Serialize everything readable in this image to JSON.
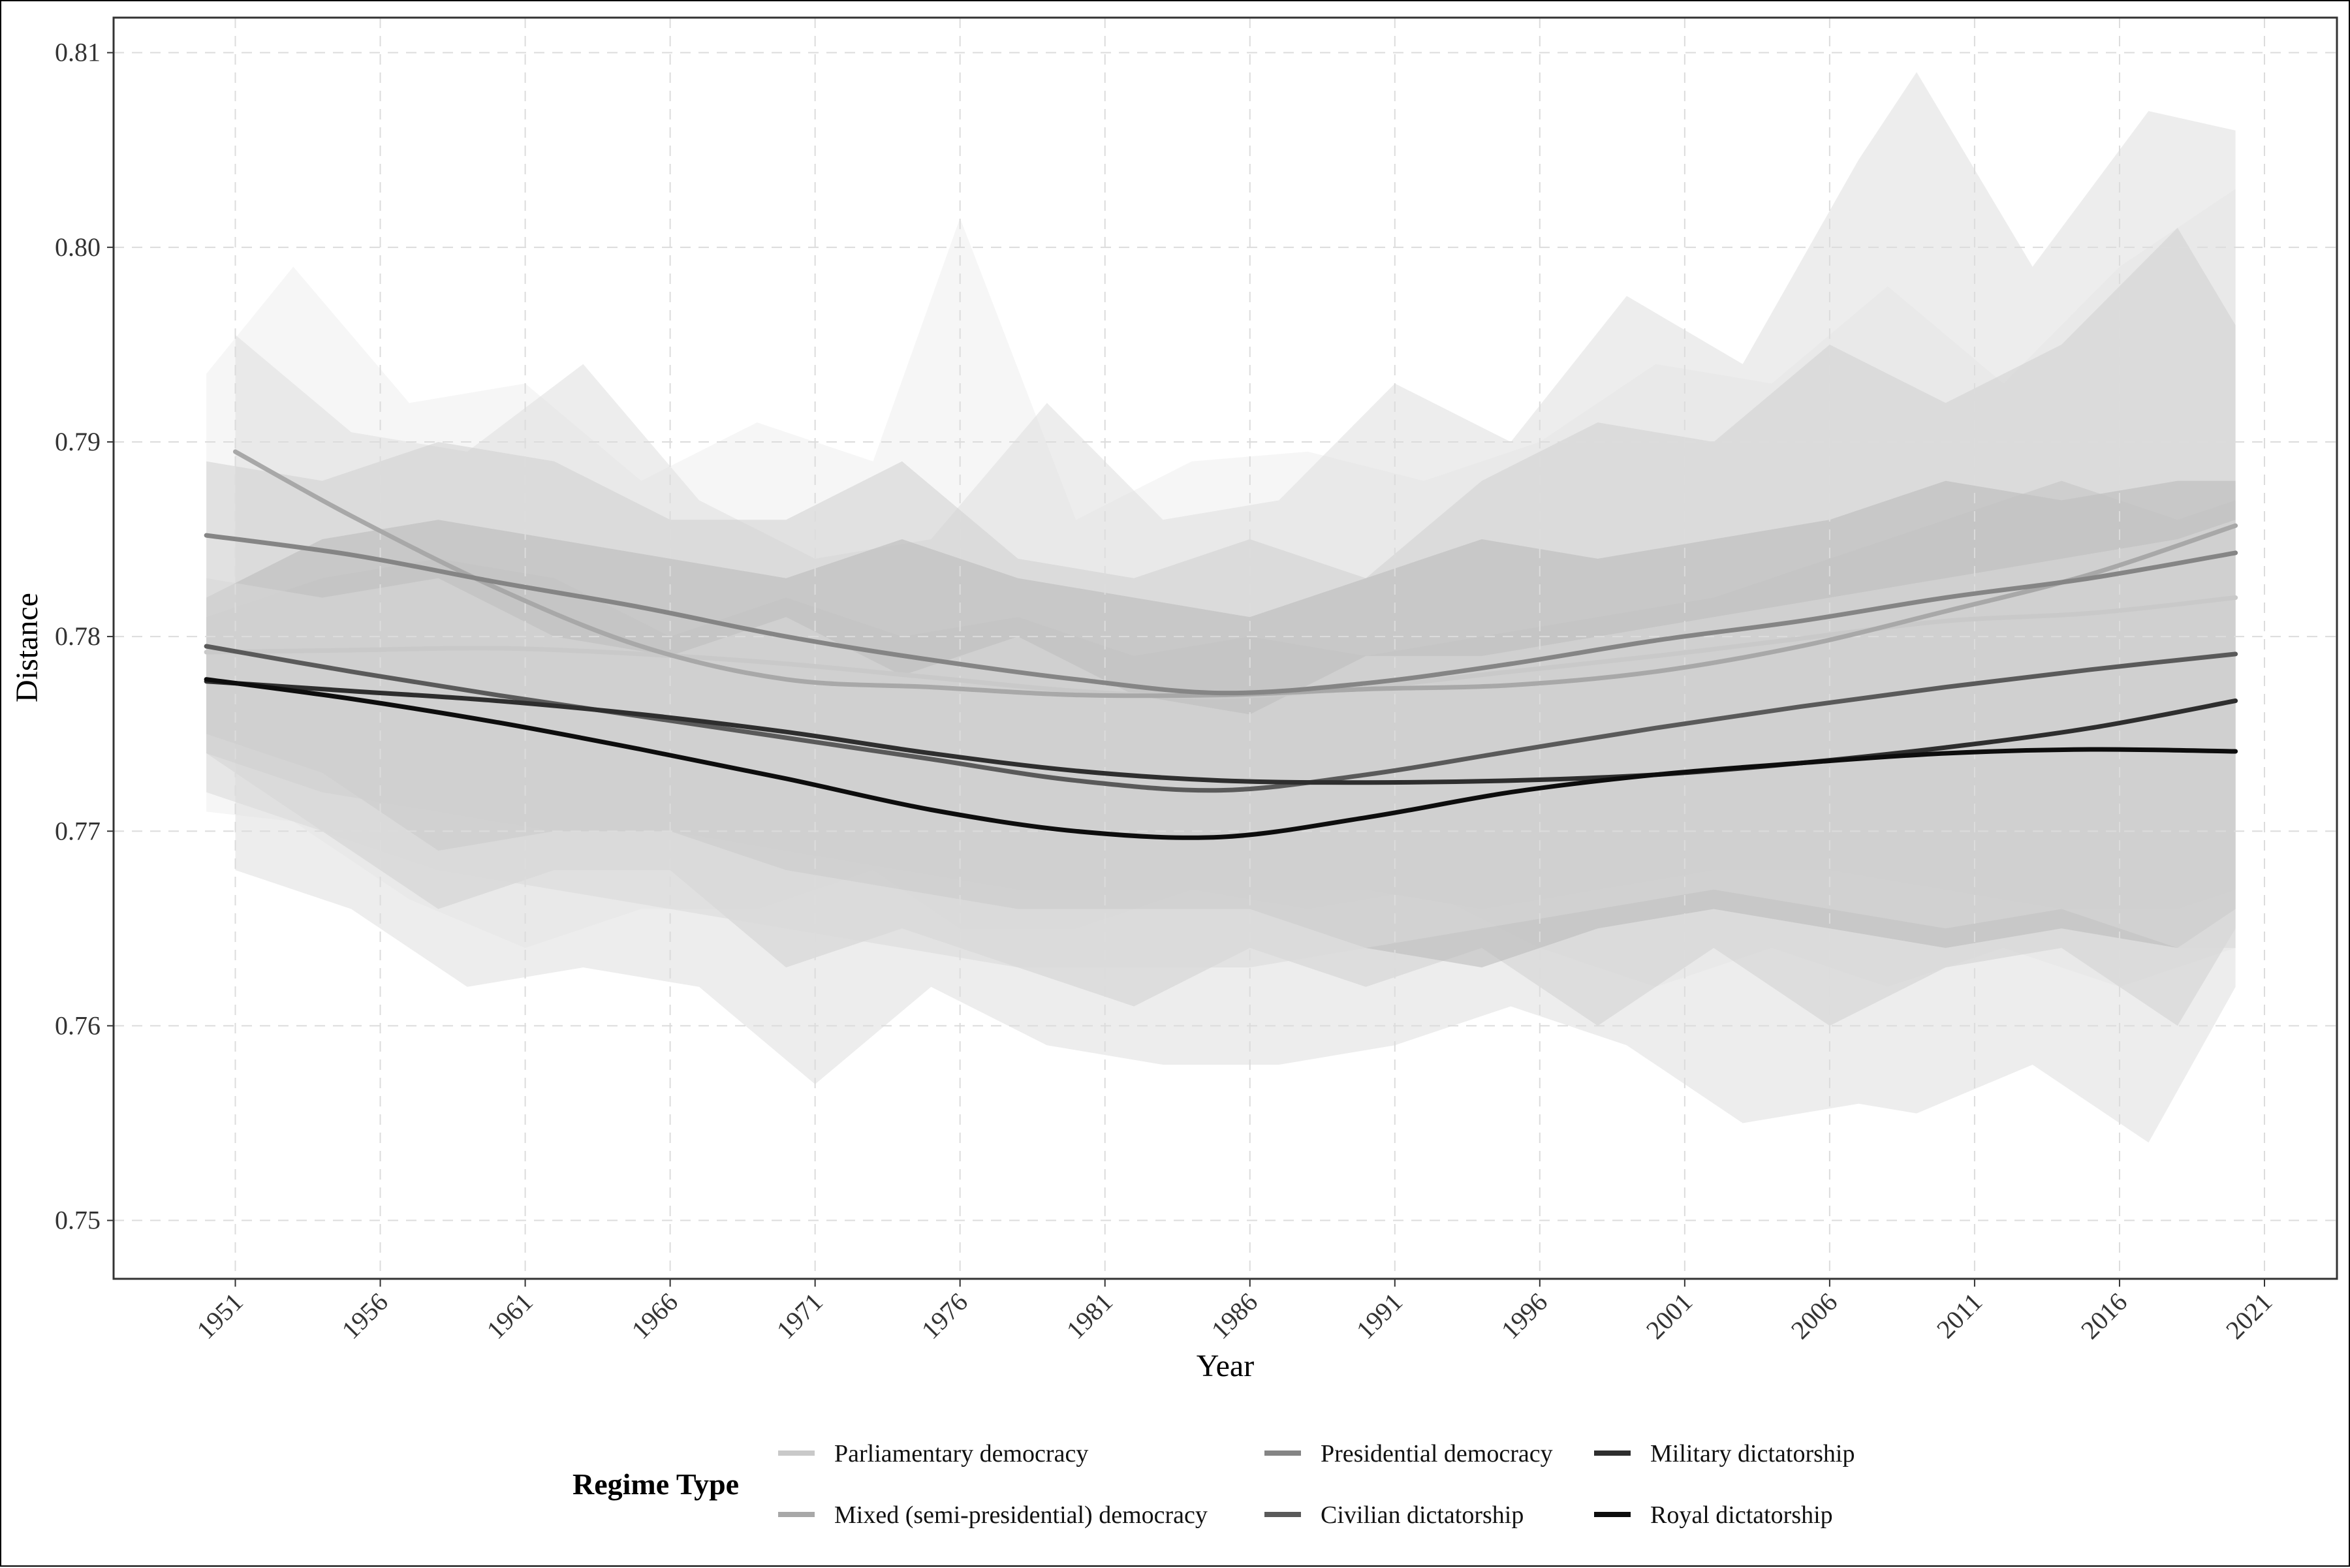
{
  "chart_data": {
    "type": "line",
    "title": "",
    "xlabel": "Year",
    "ylabel": "Distance",
    "xlim": [
      1946.8,
      2023.5
    ],
    "ylim": [
      0.747,
      0.8118
    ],
    "x_ticks": [
      1951,
      1956,
      1961,
      1966,
      1971,
      1976,
      1981,
      1986,
      1991,
      1996,
      2001,
      2006,
      2011,
      2016,
      2021
    ],
    "y_ticks": [
      0.75,
      0.76,
      0.77,
      0.78,
      0.79,
      0.8,
      0.81
    ],
    "y_tick_labels": [
      "0.75",
      "0.76",
      "0.77",
      "0.78",
      "0.79",
      "0.80",
      "0.81"
    ],
    "grid": true,
    "legend": {
      "title": "Regime Type",
      "placement": "bottom"
    },
    "series": [
      {
        "name": "Parliamentary democracy",
        "color": "#c9c9c9",
        "band_color": "#efefef",
        "trend": {
          "x": [
            1950,
            1955,
            1960,
            1965,
            1970,
            1975,
            1980,
            1985,
            1990,
            1995,
            2000,
            2005,
            2010,
            2015,
            2020
          ],
          "y": [
            0.7792,
            0.7793,
            0.7794,
            0.7791,
            0.7786,
            0.7779,
            0.7772,
            0.7769,
            0.7774,
            0.7782,
            0.779,
            0.7799,
            0.7808,
            0.7812,
            0.782
          ]
        },
        "band_upper": {
          "x": [
            1950,
            1953,
            1957,
            1961,
            1965,
            1969,
            1973,
            1976,
            1980,
            1984,
            1988,
            1992,
            1996,
            2000,
            2004,
            2008,
            2012,
            2016,
            2020
          ],
          "y": [
            0.7935,
            0.799,
            0.792,
            0.793,
            0.788,
            0.791,
            0.789,
            0.8015,
            0.786,
            0.789,
            0.7895,
            0.788,
            0.79,
            0.794,
            0.793,
            0.798,
            0.793,
            0.799,
            0.803
          ]
        },
        "band_lower": {
          "x": [
            1950,
            1953,
            1957,
            1961,
            1965,
            1969,
            1973,
            1976,
            1980,
            1984,
            1988,
            1992,
            1996,
            2000,
            2004,
            2008,
            2012,
            2016,
            2020
          ],
          "y": [
            0.771,
            0.7705,
            0.7665,
            0.764,
            0.766,
            0.766,
            0.768,
            0.765,
            0.765,
            0.767,
            0.766,
            0.767,
            0.764,
            0.762,
            0.764,
            0.762,
            0.764,
            0.762,
            0.764
          ]
        }
      },
      {
        "name": "Mixed (semi-presidential) democracy",
        "color": "#a8a8a8",
        "band_color": "#dedede",
        "trend": {
          "x": [
            1951,
            1955,
            1960,
            1965,
            1970,
            1975,
            1980,
            1985,
            1990,
            1995,
            2000,
            2005,
            2010,
            2015,
            2020
          ],
          "y": [
            0.7895,
            0.7862,
            0.7825,
            0.7795,
            0.7778,
            0.7774,
            0.777,
            0.777,
            0.7773,
            0.7775,
            0.7782,
            0.7795,
            0.7813,
            0.7832,
            0.7857
          ]
        },
        "band_upper": {
          "x": [
            1951,
            1955,
            1959,
            1963,
            1967,
            1971,
            1975,
            1979,
            1983,
            1987,
            1991,
            1995,
            1999,
            2003,
            2007,
            2009,
            2013,
            2017,
            2020
          ],
          "y": [
            0.7955,
            0.7905,
            0.7895,
            0.794,
            0.787,
            0.784,
            0.785,
            0.792,
            0.786,
            0.787,
            0.793,
            0.79,
            0.7975,
            0.794,
            0.8045,
            0.809,
            0.799,
            0.807,
            0.806
          ]
        },
        "band_lower": {
          "x": [
            1951,
            1955,
            1959,
            1963,
            1967,
            1971,
            1975,
            1979,
            1983,
            1987,
            1991,
            1995,
            1999,
            2003,
            2007,
            2009,
            2013,
            2017,
            2020
          ],
          "y": [
            0.768,
            0.766,
            0.762,
            0.763,
            0.762,
            0.757,
            0.762,
            0.759,
            0.758,
            0.758,
            0.759,
            0.761,
            0.759,
            0.755,
            0.756,
            0.7555,
            0.758,
            0.754,
            0.762
          ]
        }
      },
      {
        "name": "Presidential democracy",
        "color": "#858585",
        "band_color": "#cfcfcf",
        "trend": {
          "x": [
            1950,
            1955,
            1960,
            1965,
            1970,
            1975,
            1980,
            1985,
            1990,
            1995,
            2000,
            2005,
            2010,
            2015,
            2020
          ],
          "y": [
            0.7852,
            0.7842,
            0.7828,
            0.7815,
            0.78,
            0.7788,
            0.7778,
            0.7771,
            0.7776,
            0.7786,
            0.7798,
            0.7808,
            0.782,
            0.783,
            0.7843
          ]
        },
        "band_upper": {
          "x": [
            1950,
            1954,
            1958,
            1962,
            1966,
            1970,
            1974,
            1978,
            1982,
            1986,
            1990,
            1994,
            1998,
            2002,
            2006,
            2010,
            2014,
            2018,
            2020
          ],
          "y": [
            0.789,
            0.788,
            0.79,
            0.789,
            0.786,
            0.786,
            0.789,
            0.784,
            0.783,
            0.785,
            0.783,
            0.788,
            0.791,
            0.79,
            0.795,
            0.792,
            0.795,
            0.801,
            0.796
          ]
        },
        "band_lower": {
          "x": [
            1950,
            1954,
            1958,
            1962,
            1966,
            1970,
            1974,
            1978,
            1982,
            1986,
            1990,
            1994,
            1998,
            2002,
            2006,
            2010,
            2014,
            2018,
            2020
          ],
          "y": [
            0.774,
            0.77,
            0.766,
            0.768,
            0.768,
            0.763,
            0.765,
            0.763,
            0.761,
            0.764,
            0.762,
            0.764,
            0.76,
            0.764,
            0.76,
            0.763,
            0.764,
            0.76,
            0.765
          ]
        }
      },
      {
        "name": "Civilian dictatorship",
        "color": "#5a5a5a",
        "band_color": "#b8b8b8",
        "trend": {
          "x": [
            1950,
            1955,
            1960,
            1965,
            1970,
            1975,
            1980,
            1985,
            1990,
            1995,
            2000,
            2005,
            2010,
            2015,
            2020
          ],
          "y": [
            0.7795,
            0.7782,
            0.777,
            0.7759,
            0.7748,
            0.7737,
            0.7726,
            0.7721,
            0.7729,
            0.7741,
            0.7753,
            0.7764,
            0.7774,
            0.7783,
            0.7791
          ]
        },
        "band_upper": {
          "x": [
            1950,
            1954,
            1958,
            1962,
            1966,
            1970,
            1974,
            1978,
            1982,
            1986,
            1990,
            1994,
            1998,
            2002,
            2006,
            2010,
            2014,
            2018,
            2020
          ],
          "y": [
            0.782,
            0.785,
            0.786,
            0.785,
            0.784,
            0.783,
            0.785,
            0.783,
            0.782,
            0.781,
            0.783,
            0.785,
            0.784,
            0.785,
            0.786,
            0.788,
            0.787,
            0.788,
            0.788
          ]
        },
        "band_lower": {
          "x": [
            1950,
            1954,
            1958,
            1962,
            1966,
            1970,
            1974,
            1978,
            1982,
            1986,
            1990,
            1994,
            1998,
            2002,
            2006,
            2010,
            2014,
            2018,
            2020
          ],
          "y": [
            0.775,
            0.773,
            0.769,
            0.77,
            0.77,
            0.768,
            0.767,
            0.766,
            0.766,
            0.766,
            0.764,
            0.763,
            0.765,
            0.766,
            0.765,
            0.764,
            0.765,
            0.764,
            0.766
          ]
        }
      },
      {
        "name": "Military dictatorship",
        "color": "#2e2e2e",
        "band_color": "#c2c2c2",
        "trend": {
          "x": [
            1950,
            1955,
            1960,
            1965,
            1970,
            1975,
            1980,
            1985,
            1990,
            1995,
            2000,
            2005,
            2010,
            2015,
            2020
          ],
          "y": [
            0.7777,
            0.7772,
            0.7767,
            0.776,
            0.7751,
            0.774,
            0.7731,
            0.7726,
            0.7725,
            0.7726,
            0.7729,
            0.7735,
            0.7743,
            0.7753,
            0.7767
          ]
        },
        "band_upper": {
          "x": [
            1950,
            1954,
            1958,
            1962,
            1966,
            1970,
            1974,
            1978,
            1982,
            1986,
            1990,
            1994,
            1998,
            2002,
            2006,
            2010,
            2014,
            2018,
            2020
          ],
          "y": [
            0.781,
            0.783,
            0.784,
            0.783,
            0.78,
            0.782,
            0.78,
            0.781,
            0.779,
            0.78,
            0.779,
            0.78,
            0.781,
            0.782,
            0.784,
            0.786,
            0.788,
            0.786,
            0.787
          ]
        },
        "band_lower": {
          "x": [
            1950,
            1954,
            1958,
            1962,
            1966,
            1970,
            1974,
            1978,
            1982,
            1986,
            1990,
            1994,
            1998,
            2002,
            2006,
            2010,
            2014,
            2018,
            2020
          ],
          "y": [
            0.774,
            0.772,
            0.771,
            0.77,
            0.77,
            0.769,
            0.768,
            0.767,
            0.767,
            0.767,
            0.767,
            0.766,
            0.767,
            0.768,
            0.768,
            0.767,
            0.766,
            0.766,
            0.767
          ]
        }
      },
      {
        "name": "Royal dictatorship",
        "color": "#0d0d0d",
        "band_color": "#d8d8d8",
        "trend": {
          "x": [
            1950,
            1955,
            1960,
            1965,
            1970,
            1975,
            1980,
            1985,
            1990,
            1995,
            2000,
            2005,
            2010,
            2015,
            2020
          ],
          "y": [
            0.7778,
            0.7768,
            0.7756,
            0.7742,
            0.7727,
            0.7711,
            0.77,
            0.7697,
            0.7707,
            0.772,
            0.7729,
            0.7735,
            0.774,
            0.7742,
            0.7741
          ]
        },
        "band_upper": {
          "x": [
            1950,
            1954,
            1958,
            1962,
            1966,
            1970,
            1974,
            1978,
            1982,
            1986,
            1990,
            1994,
            1998,
            2002,
            2006,
            2010,
            2014,
            2018,
            2020
          ],
          "y": [
            0.783,
            0.782,
            0.783,
            0.78,
            0.779,
            0.781,
            0.778,
            0.78,
            0.777,
            0.776,
            0.779,
            0.779,
            0.78,
            0.781,
            0.782,
            0.783,
            0.784,
            0.785,
            0.786
          ]
        },
        "band_lower": {
          "x": [
            1950,
            1954,
            1958,
            1962,
            1966,
            1970,
            1974,
            1978,
            1982,
            1986,
            1990,
            1994,
            1998,
            2002,
            2006,
            2010,
            2014,
            2018,
            2020
          ],
          "y": [
            0.772,
            0.77,
            0.768,
            0.767,
            0.766,
            0.765,
            0.764,
            0.763,
            0.763,
            0.763,
            0.764,
            0.765,
            0.766,
            0.767,
            0.766,
            0.765,
            0.766,
            0.764,
            0.764
          ]
        }
      }
    ]
  }
}
